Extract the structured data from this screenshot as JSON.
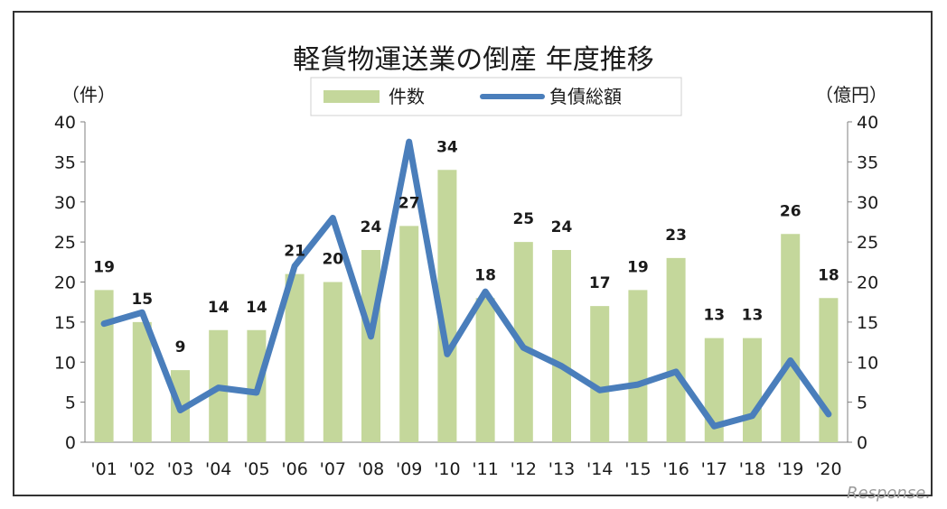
{
  "chart_data": {
    "type": "bar+line",
    "title": "軽貨物運送業の倒産 年度推移",
    "left_unit": "（件）",
    "right_unit": "（億円）",
    "categories": [
      "'01",
      "'02",
      "'03",
      "'04",
      "'05",
      "'06",
      "'07",
      "'08",
      "'09",
      "'10",
      "'11",
      "'12",
      "'13",
      "'14",
      "'15",
      "'16",
      "'17",
      "'18",
      "'19",
      "'20"
    ],
    "series": [
      {
        "name": "件数",
        "type": "bar",
        "axis": "left",
        "color": "#c4d79b",
        "values": [
          19,
          15,
          9,
          14,
          14,
          21,
          20,
          24,
          27,
          34,
          18,
          25,
          24,
          17,
          19,
          23,
          13,
          13,
          26,
          18
        ],
        "labels": [
          "19",
          "15",
          "9",
          "14",
          "14",
          "21",
          "20",
          "24",
          "27",
          "34",
          "18",
          "25",
          "24",
          "17",
          "19",
          "23",
          "13",
          "13",
          "26",
          "18"
        ]
      },
      {
        "name": "負債総額",
        "type": "line",
        "axis": "right",
        "color": "#4a7ebb",
        "values": [
          14.8,
          16.2,
          4,
          6.8,
          6.2,
          22,
          28,
          13.2,
          37.5,
          11,
          18.8,
          11.8,
          9.5,
          6.5,
          7.2,
          8.8,
          2,
          3.3,
          10.2,
          3.5
        ]
      }
    ],
    "y_left": {
      "min": 0,
      "max": 40,
      "ticks": [
        "0",
        "5",
        "10",
        "15",
        "20",
        "25",
        "30",
        "35",
        "40"
      ]
    },
    "y_right": {
      "min": 0,
      "max": 40,
      "ticks": [
        "0",
        "5",
        "10",
        "15",
        "20",
        "25",
        "30",
        "35",
        "40"
      ]
    },
    "legend_position": "top-center",
    "grid": false
  },
  "watermark": "Response."
}
